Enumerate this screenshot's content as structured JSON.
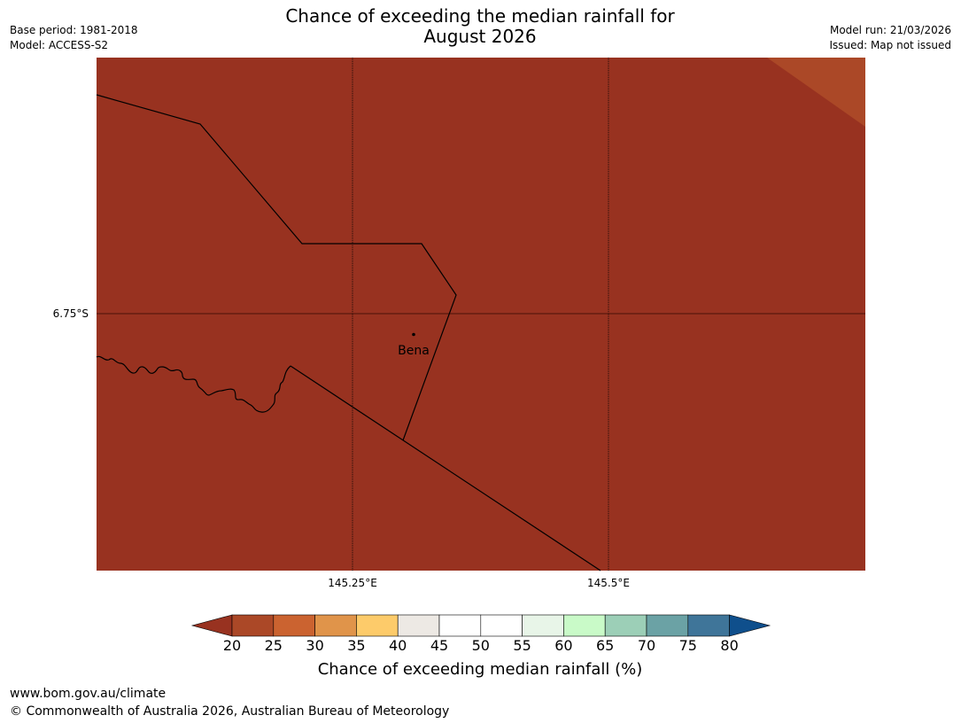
{
  "header": {
    "title_line1": "Chance of exceeding the median rainfall for",
    "title_line2": "August 2026",
    "base_period": "Base period: 1981-2018",
    "model": "Model: ACCESS-S2",
    "model_run": "Model run: 21/03/2026",
    "issued": "Issued: Map not issued"
  },
  "map": {
    "background_color": "#983220",
    "corner_color": "#ab4827",
    "lat_label": "6.75°S",
    "lon_labels": [
      "145.25°E",
      "145.5°E"
    ],
    "place_name": "Bena",
    "place_marker": "place-dot"
  },
  "colorbar": {
    "ticks": [
      "20",
      "25",
      "30",
      "35",
      "40",
      "45",
      "50",
      "55",
      "60",
      "65",
      "70",
      "75",
      "80"
    ],
    "under_color": "#983220",
    "over_color": "#0f4f8c",
    "colors": [
      "#ab4827",
      "#cb6330",
      "#e0944a",
      "#fdcb6a",
      "#ede9e4",
      "#ffffff",
      "#ffffff",
      "#e8f5e8",
      "#c9fac8",
      "#9ccfb7",
      "#6ba2a5",
      "#3f7599"
    ],
    "label": "Chance of exceeding median rainfall (%)"
  },
  "footer": {
    "url": "www.bom.gov.au/climate",
    "copyright": "© Commonwealth of Australia 2026, Australian Bureau of Meteorology"
  }
}
